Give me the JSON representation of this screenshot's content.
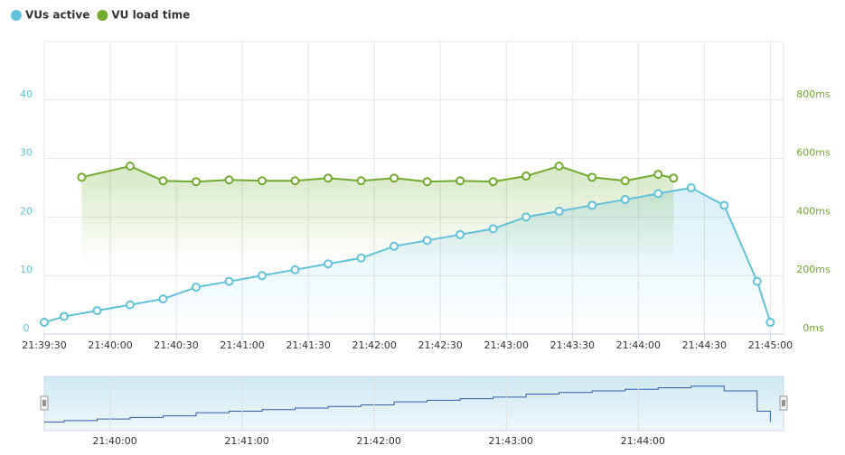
{
  "chart_data": {
    "type": "line",
    "series": [
      {
        "name": "VUs active",
        "color": "#62c2db",
        "axis": "y",
        "x": [
          "21:39:30",
          "21:39:39",
          "21:39:54",
          "21:40:09",
          "21:40:24",
          "21:40:39",
          "21:40:54",
          "21:41:09",
          "21:41:24",
          "21:41:39",
          "21:41:54",
          "21:42:09",
          "21:42:24",
          "21:42:39",
          "21:42:54",
          "21:43:09",
          "21:43:24",
          "21:43:39",
          "21:43:54",
          "21:44:09",
          "21:44:24",
          "21:44:39",
          "21:44:54",
          "21:45:00"
        ],
        "values": [
          2,
          3,
          4,
          5,
          6,
          8,
          9,
          10,
          11,
          12,
          13,
          15,
          16,
          17,
          18,
          20,
          21,
          22,
          23,
          24,
          25,
          22,
          9,
          2
        ]
      },
      {
        "name": "VU load time",
        "color": "#72ab2f",
        "axis": "y2",
        "x": [
          "21:39:47",
          "21:40:09",
          "21:40:24",
          "21:40:39",
          "21:40:54",
          "21:41:09",
          "21:41:24",
          "21:41:39",
          "21:41:54",
          "21:42:09",
          "21:42:24",
          "21:42:39",
          "21:42:54",
          "21:43:09",
          "21:43:24",
          "21:43:39",
          "21:43:54",
          "21:44:09",
          "21:44:16"
        ],
        "values": [
          536,
          574,
          524,
          521,
          527,
          524,
          524,
          533,
          524,
          533,
          521,
          524,
          521,
          540,
          574,
          536,
          524,
          546,
          533
        ]
      }
    ],
    "xlim": [
      "21:39:30",
      "21:45:06"
    ],
    "xticks": [
      "21:39:30",
      "21:40:00",
      "21:40:30",
      "21:41:00",
      "21:41:30",
      "21:42:00",
      "21:42:30",
      "21:43:00",
      "21:43:30",
      "21:44:00",
      "21:44:30",
      "21:45:00"
    ],
    "ylim": [
      0,
      50
    ],
    "yticks": [
      0,
      10,
      20,
      30,
      40
    ],
    "y2lim": [
      0,
      1000
    ],
    "y2ticks": [
      {
        "value": 0,
        "label": "0ms"
      },
      {
        "value": 200,
        "label": "200ms"
      },
      {
        "value": 400,
        "label": "400ms"
      },
      {
        "value": 600,
        "label": "600ms"
      },
      {
        "value": 800,
        "label": "800ms"
      }
    ],
    "navigator_xticks": [
      "21:40:00",
      "21:41:00",
      "21:42:00",
      "21:43:00",
      "21:44:00"
    ],
    "grid": true,
    "legend": "top-left"
  }
}
